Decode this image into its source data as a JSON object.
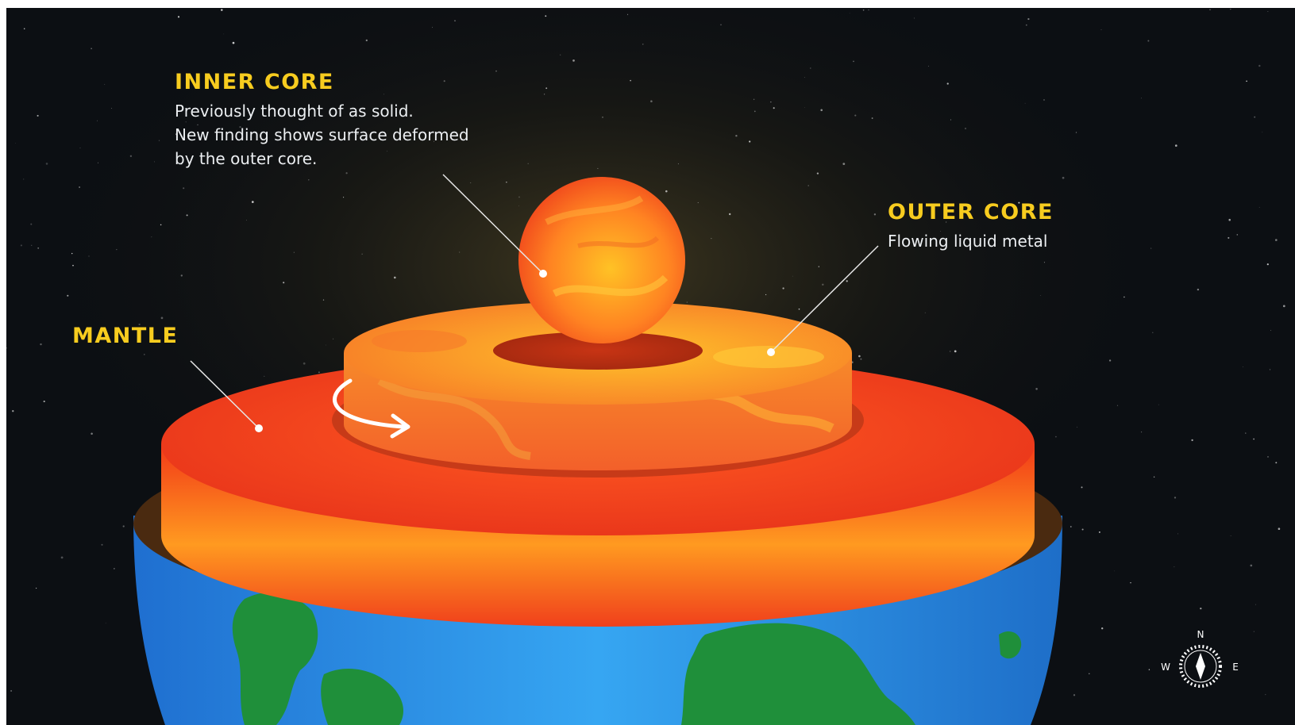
{
  "labels": {
    "inner_core": {
      "title": "INNER CORE",
      "lines": [
        "Previously thought of as solid.",
        "New finding shows surface deformed",
        "by the outer core."
      ]
    },
    "outer_core": {
      "title": "OUTER CORE",
      "lines": [
        "Flowing liquid metal"
      ]
    },
    "mantle": {
      "title": "MANTLE"
    }
  },
  "compass": {
    "north": "N",
    "west": "W",
    "east": "E"
  },
  "colors": {
    "label_title": "#f7cc1f",
    "label_text": "#eceff2",
    "background": "#0c0f13",
    "ocean": "#2a8fe6",
    "land": "#1f8f3a",
    "crust": "#4a2a10",
    "mantle": "#f04a20",
    "outer_core": "#fba02a",
    "inner_core": "#ff7a22"
  }
}
